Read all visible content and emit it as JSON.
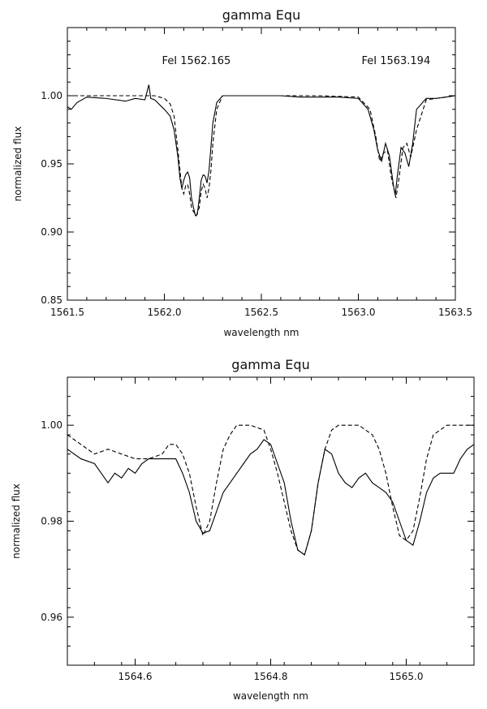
{
  "chart_data": [
    {
      "type": "line",
      "title": "gamma Equ",
      "xlabel": "wavelength nm",
      "ylabel": "normalized flux",
      "xlim": [
        1561.5,
        1563.5
      ],
      "ylim": [
        0.85,
        1.05
      ],
      "xticks": [
        "1561.5",
        "1562.0",
        "1562.5",
        "1563.0",
        "1563.5"
      ],
      "yticks": [
        "0.85",
        "0.90",
        "0.95",
        "1.00"
      ],
      "annotations": [
        {
          "text": "FeI 1562.165",
          "x": 1562.165,
          "y": 1.022
        },
        {
          "text": "FeI 1563.194",
          "x": 1563.194,
          "y": 1.022
        }
      ],
      "series": [
        {
          "style": "solid",
          "x": [
            1561.5,
            1561.52,
            1561.55,
            1561.6,
            1561.7,
            1561.8,
            1561.85,
            1561.9,
            1561.92,
            1561.93,
            1561.95,
            1562.0,
            1562.03,
            1562.05,
            1562.07,
            1562.08,
            1562.09,
            1562.1,
            1562.11,
            1562.12,
            1562.13,
            1562.14,
            1562.15,
            1562.16,
            1562.17,
            1562.18,
            1562.19,
            1562.2,
            1562.21,
            1562.22,
            1562.23,
            1562.24,
            1562.25,
            1562.27,
            1562.3,
            1562.4,
            1562.5,
            1562.6,
            1562.7,
            1562.8,
            1562.9,
            1563.0,
            1563.05,
            1563.08,
            1563.1,
            1563.12,
            1563.14,
            1563.16,
            1563.18,
            1563.19,
            1563.2,
            1563.22,
            1563.24,
            1563.26,
            1563.28,
            1563.3,
            1563.35,
            1563.4,
            1563.45,
            1563.5
          ],
          "y": [
            0.992,
            0.99,
            0.995,
            0.999,
            0.998,
            0.996,
            0.998,
            0.997,
            1.008,
            0.998,
            0.997,
            0.99,
            0.985,
            0.975,
            0.955,
            0.94,
            0.932,
            0.938,
            0.942,
            0.944,
            0.94,
            0.925,
            0.918,
            0.912,
            0.913,
            0.925,
            0.938,
            0.942,
            0.941,
            0.936,
            0.945,
            0.962,
            0.98,
            0.995,
            1.0,
            1.0,
            1.0,
            1.0,
            0.999,
            0.999,
            0.999,
            0.998,
            0.99,
            0.975,
            0.96,
            0.952,
            0.965,
            0.956,
            0.935,
            0.927,
            0.94,
            0.962,
            0.958,
            0.948,
            0.965,
            0.99,
            0.998,
            0.998,
            0.999,
            1.0
          ]
        },
        {
          "style": "dashed",
          "x": [
            1561.5,
            1561.6,
            1561.7,
            1561.8,
            1561.9,
            1561.95,
            1562.0,
            1562.03,
            1562.05,
            1562.07,
            1562.09,
            1562.1,
            1562.11,
            1562.12,
            1562.13,
            1562.14,
            1562.15,
            1562.165,
            1562.18,
            1562.19,
            1562.2,
            1562.21,
            1562.22,
            1562.23,
            1562.24,
            1562.25,
            1562.27,
            1562.3,
            1562.5,
            1562.8,
            1563.0,
            1563.06,
            1563.09,
            1563.11,
            1563.13,
            1563.15,
            1563.17,
            1563.194,
            1563.21,
            1563.23,
            1563.25,
            1563.27,
            1563.3,
            1563.35,
            1563.5
          ],
          "y": [
            1.0,
            1.0,
            1.0,
            1.0,
            1.0,
            1.0,
            0.998,
            0.994,
            0.985,
            0.96,
            0.932,
            0.928,
            0.934,
            0.935,
            0.928,
            0.918,
            0.915,
            0.912,
            0.918,
            0.93,
            0.935,
            0.932,
            0.925,
            0.932,
            0.945,
            0.965,
            0.99,
            1.0,
            1.0,
            1.0,
            0.999,
            0.99,
            0.97,
            0.952,
            0.958,
            0.96,
            0.94,
            0.925,
            0.94,
            0.962,
            0.965,
            0.955,
            0.975,
            0.997,
            1.0
          ]
        }
      ]
    },
    {
      "type": "line",
      "title": "gamma Equ",
      "xlabel": "wavelength nm",
      "ylabel": "normalized flux",
      "xlim": [
        1564.5,
        1565.1
      ],
      "ylim": [
        0.95,
        1.01
      ],
      "xticks": [
        "1564.6",
        "1564.8",
        "1565.0"
      ],
      "yticks": [
        "0.96",
        "0.98",
        "1.00"
      ],
      "series": [
        {
          "style": "solid",
          "x": [
            1564.5,
            1564.52,
            1564.54,
            1564.56,
            1564.57,
            1564.58,
            1564.59,
            1564.6,
            1564.61,
            1564.62,
            1564.64,
            1564.66,
            1564.67,
            1564.68,
            1564.69,
            1564.7,
            1564.71,
            1564.72,
            1564.73,
            1564.74,
            1564.75,
            1564.76,
            1564.77,
            1564.78,
            1564.79,
            1564.8,
            1564.81,
            1564.82,
            1564.83,
            1564.84,
            1564.85,
            1564.86,
            1564.87,
            1564.88,
            1564.89,
            1564.9,
            1564.91,
            1564.92,
            1564.93,
            1564.94,
            1564.95,
            1564.96,
            1564.97,
            1564.98,
            1564.99,
            1565.0,
            1565.01,
            1565.02,
            1565.03,
            1565.04,
            1565.05,
            1565.06,
            1565.07,
            1565.08,
            1565.09,
            1565.1
          ],
          "y": [
            0.995,
            0.993,
            0.992,
            0.988,
            0.99,
            0.989,
            0.991,
            0.99,
            0.992,
            0.993,
            0.993,
            0.993,
            0.99,
            0.986,
            0.98,
            0.9775,
            0.978,
            0.982,
            0.986,
            0.988,
            0.99,
            0.992,
            0.994,
            0.995,
            0.997,
            0.996,
            0.992,
            0.988,
            0.98,
            0.974,
            0.973,
            0.978,
            0.988,
            0.995,
            0.994,
            0.99,
            0.988,
            0.987,
            0.989,
            0.99,
            0.988,
            0.987,
            0.986,
            0.984,
            0.98,
            0.976,
            0.975,
            0.98,
            0.986,
            0.989,
            0.99,
            0.99,
            0.99,
            0.993,
            0.995,
            0.996
          ]
        },
        {
          "style": "dashed",
          "x": [
            1564.5,
            1564.52,
            1564.54,
            1564.56,
            1564.58,
            1564.6,
            1564.62,
            1564.64,
            1564.65,
            1564.66,
            1564.67,
            1564.68,
            1564.69,
            1564.7,
            1564.71,
            1564.72,
            1564.73,
            1564.74,
            1564.75,
            1564.77,
            1564.79,
            1564.8,
            1564.81,
            1564.82,
            1564.83,
            1564.84,
            1564.85,
            1564.86,
            1564.87,
            1564.88,
            1564.89,
            1564.9,
            1564.93,
            1564.95,
            1564.96,
            1564.97,
            1564.98,
            1564.99,
            1565.0,
            1565.01,
            1565.02,
            1565.03,
            1565.04,
            1565.06,
            1565.08,
            1565.1
          ],
          "y": [
            0.998,
            0.996,
            0.994,
            0.995,
            0.994,
            0.993,
            0.993,
            0.994,
            0.996,
            0.996,
            0.994,
            0.99,
            0.983,
            0.977,
            0.98,
            0.988,
            0.995,
            0.998,
            1.0,
            1.0,
            0.999,
            0.995,
            0.99,
            0.984,
            0.978,
            0.974,
            0.973,
            0.978,
            0.988,
            0.995,
            0.999,
            1.0,
            1.0,
            0.998,
            0.995,
            0.99,
            0.983,
            0.977,
            0.976,
            0.978,
            0.985,
            0.993,
            0.998,
            1.0,
            1.0,
            1.0
          ]
        }
      ]
    }
  ]
}
